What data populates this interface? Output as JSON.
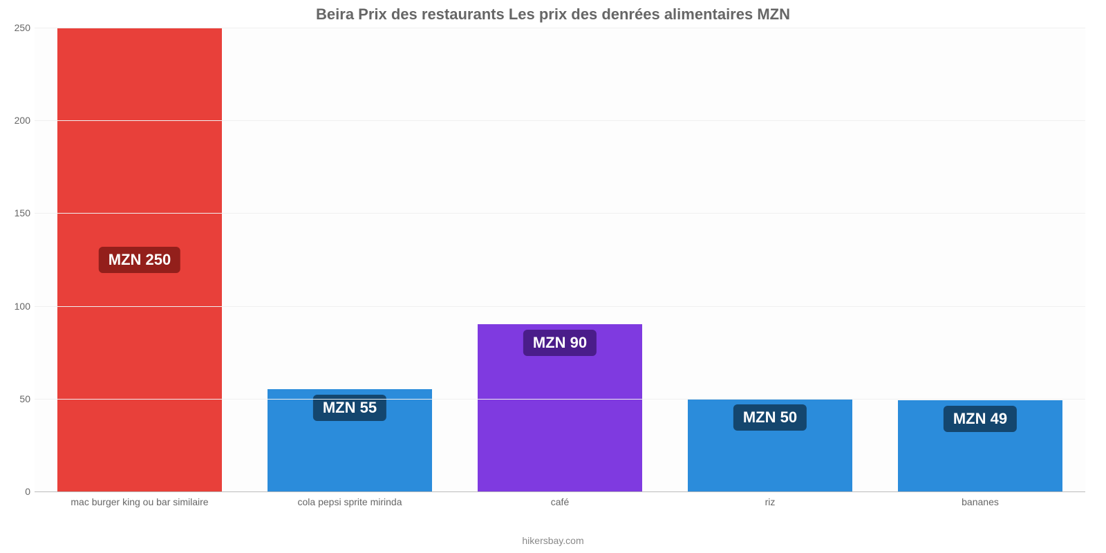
{
  "chart": {
    "type": "bar",
    "title": "Beira Prix des restaurants Les prix des denrées alimentaires MZN",
    "title_fontsize": 22,
    "title_color": "#666666",
    "background_color": "#ffffff",
    "plot_background_color": "#fdfdfd",
    "grid_color": "#f0f0f0",
    "axis_line_color": "#bcbcbc",
    "tick_label_color": "#666666",
    "tick_label_fontsize": 14,
    "ylim": [
      0,
      250
    ],
    "ytick_step": 50,
    "yticks": [
      0,
      50,
      100,
      150,
      200,
      250
    ],
    "categories": [
      "mac burger king ou bar similaire",
      "cola pepsi sprite mirinda",
      "café",
      "riz",
      "bananes"
    ],
    "values": [
      250,
      55,
      90,
      50,
      49
    ],
    "bar_colors": [
      "#e8403a",
      "#2b8cdb",
      "#7f3ae0",
      "#2b8cdb",
      "#2b8cdb"
    ],
    "bar_width": 0.78,
    "value_labels": [
      "MZN 250",
      "MZN 55",
      "MZN 90",
      "MZN 50",
      "MZN 49"
    ],
    "value_label_fontsize": 22,
    "value_label_color": "#ffffff",
    "value_label_bg_colors": [
      "#931f1b",
      "#14466e",
      "#4a1d8a",
      "#14466e",
      "#14466e"
    ],
    "value_label_border_radius": 6,
    "footer": "hikersbay.com",
    "footer_color": "#888888",
    "footer_fontsize": 14
  }
}
